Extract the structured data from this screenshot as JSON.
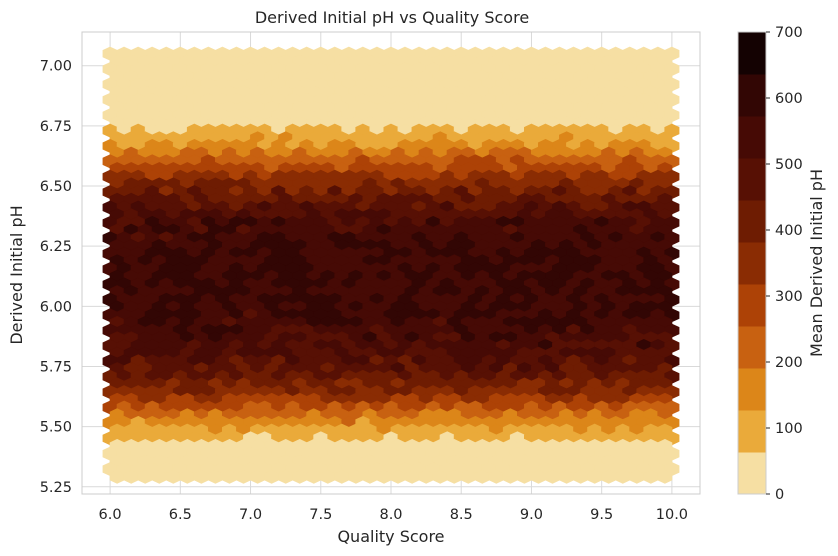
{
  "chart_data": {
    "type": "heatmap",
    "subtype": "hexbin",
    "title": "Derived Initial pH vs Quality Score",
    "xlabel": "Quality Score",
    "ylabel": "Derived Initial pH",
    "xlim": [
      5.8,
      10.2
    ],
    "ylim": [
      5.22,
      7.14
    ],
    "x_ticks": [
      "6.0",
      "6.5",
      "7.0",
      "7.5",
      "8.0",
      "8.5",
      "9.0",
      "9.5",
      "10.0"
    ],
    "y_ticks": [
      "5.25",
      "5.50",
      "5.75",
      "6.00",
      "6.25",
      "6.50",
      "6.75",
      "7.00"
    ],
    "hex_x_range": [
      6.0,
      10.0
    ],
    "hex_y_range": [
      5.29,
      7.05
    ],
    "gridsize": 40,
    "profile": {
      "description_of_mean_by_pH": "low outside 5.45-6.70, rising to ~550-650 in the 5.8-6.4 core",
      "points": [
        {
          "ph": 5.29,
          "mean": 10
        },
        {
          "ph": 5.38,
          "mean": 20
        },
        {
          "ph": 5.44,
          "mean": 70
        },
        {
          "ph": 5.48,
          "mean": 110
        },
        {
          "ph": 5.53,
          "mean": 180
        },
        {
          "ph": 5.58,
          "mean": 260
        },
        {
          "ph": 5.64,
          "mean": 360
        },
        {
          "ph": 5.72,
          "mean": 450
        },
        {
          "ph": 5.82,
          "mean": 520
        },
        {
          "ph": 5.95,
          "mean": 560
        },
        {
          "ph": 6.1,
          "mean": 580
        },
        {
          "ph": 6.25,
          "mean": 570
        },
        {
          "ph": 6.35,
          "mean": 530
        },
        {
          "ph": 6.45,
          "mean": 440
        },
        {
          "ph": 6.52,
          "mean": 360
        },
        {
          "ph": 6.58,
          "mean": 260
        },
        {
          "ph": 6.64,
          "mean": 170
        },
        {
          "ph": 6.7,
          "mean": 100
        },
        {
          "ph": 6.76,
          "mean": 30
        },
        {
          "ph": 6.82,
          "mean": 10
        },
        {
          "ph": 7.05,
          "mean": 10
        }
      ]
    },
    "colorbar": {
      "label": "Mean Derived Initial pH",
      "min": 0,
      "max": 700,
      "ticks": [
        "0",
        "100",
        "200",
        "300",
        "400",
        "500",
        "600",
        "700"
      ],
      "levels": 11,
      "colors": [
        "#f6dfa3",
        "#eaaa3a",
        "#dc8619",
        "#c86111",
        "#ad4206",
        "#8a2c03",
        "#6e1c02",
        "#571004",
        "#460a05",
        "#320604",
        "#140202"
      ]
    },
    "grid": true
  }
}
